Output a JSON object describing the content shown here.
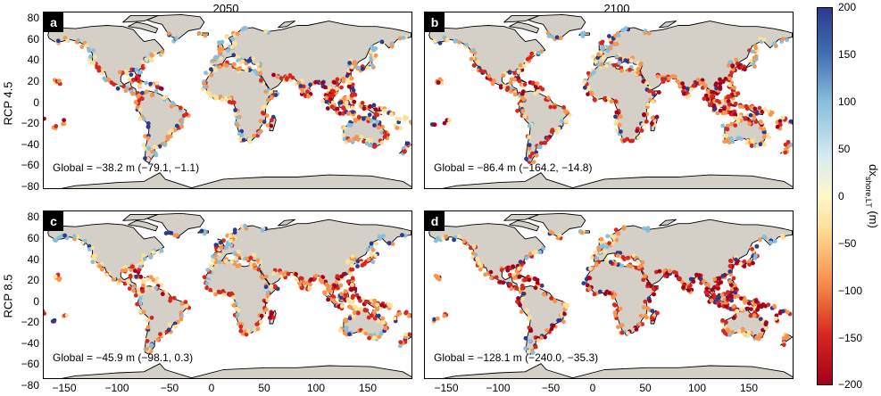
{
  "columns": [
    "2050",
    "2100"
  ],
  "rows": [
    "RCP 4.5",
    "RCP 8.5"
  ],
  "panels": [
    {
      "letter": "a",
      "global": "Global = −38.2 m (−79.1, −1.1)",
      "intensity": 0.35
    },
    {
      "letter": "b",
      "global": "Global = −86.4 m (−164.2, −14.8)",
      "intensity": 0.65
    },
    {
      "letter": "c",
      "global": "Global = −45.9 m (−98.1, 0.3)",
      "intensity": 0.42
    },
    {
      "letter": "d",
      "global": "Global = −128.1 m (−240.0, −35.3)",
      "intensity": 0.85
    }
  ],
  "axes": {
    "yticks": [
      "80",
      "60",
      "40",
      "20",
      "0",
      "−20",
      "−40",
      "−60",
      "−80"
    ],
    "xticks": [
      "−150",
      "−100",
      "−50",
      "0",
      "50",
      "100",
      "150"
    ],
    "lat_range": [
      -80,
      85
    ],
    "lon_range": [
      -170,
      180
    ]
  },
  "colorbar": {
    "ticks": [
      "200",
      "150",
      "100",
      "50",
      "0",
      "−50",
      "−100",
      "−150",
      "−200"
    ],
    "label_main": "dx",
    "label_sub": "shore,LT",
    "label_unit": " (m)",
    "range": [
      -200,
      200
    ]
  },
  "colors": {
    "land": "#d4d0c8",
    "blue": "#2b3a8f",
    "light_blue": "#87bfdd",
    "yellow": "#fde19a",
    "orange": "#f7954e",
    "red": "#d7261e",
    "dark_red": "#a2001e"
  }
}
